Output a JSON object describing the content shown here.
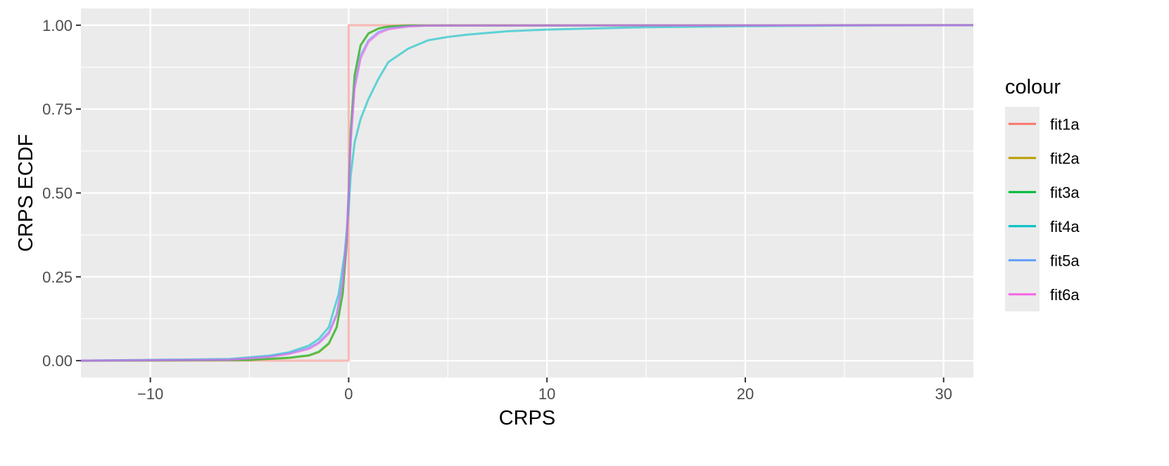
{
  "chart_data": {
    "type": "line",
    "title": "",
    "xlabel": "CRPS",
    "ylabel": "CRPS ECDF",
    "xlim": [
      -13.5,
      31.5
    ],
    "ylim": [
      -0.05,
      1.05
    ],
    "x_ticks": [
      -10,
      0,
      10,
      20,
      30
    ],
    "x_tick_labels": [
      "−10",
      "0",
      "10",
      "20",
      "30"
    ],
    "y_ticks": [
      0,
      0.25,
      0.5,
      0.75,
      1
    ],
    "y_tick_labels": [
      "0.00",
      "0.25",
      "0.50",
      "0.75",
      "1.00"
    ],
    "grid": true,
    "legend": {
      "title": "colour",
      "placement": "right"
    },
    "series": [
      {
        "name": "fit1a",
        "color": "#F8766D",
        "opacity": 0.5,
        "x": [
          -13.5,
          0,
          0,
          31.5
        ],
        "y": [
          0,
          0,
          1,
          1
        ]
      },
      {
        "name": "fit2a",
        "color": "#B79F00",
        "opacity": 0.6,
        "x": [
          -13.5,
          -5,
          -3,
          -2,
          -1.5,
          -1,
          -0.6,
          -0.3,
          -0.1,
          0,
          0.1,
          0.3,
          0.6,
          1,
          1.5,
          2,
          3,
          31.5
        ],
        "y": [
          0,
          0.002,
          0.008,
          0.015,
          0.025,
          0.05,
          0.1,
          0.2,
          0.35,
          0.5,
          0.68,
          0.85,
          0.94,
          0.975,
          0.99,
          0.996,
          0.999,
          1
        ]
      },
      {
        "name": "fit3a",
        "color": "#00BA38",
        "opacity": 0.6,
        "x": [
          -13.5,
          -5,
          -3,
          -2,
          -1.5,
          -1,
          -0.6,
          -0.3,
          -0.1,
          0,
          0.1,
          0.3,
          0.6,
          1,
          1.5,
          2,
          3,
          31.5
        ],
        "y": [
          0,
          0.002,
          0.009,
          0.016,
          0.027,
          0.052,
          0.1,
          0.2,
          0.35,
          0.5,
          0.68,
          0.85,
          0.94,
          0.976,
          0.99,
          0.996,
          0.999,
          1
        ]
      },
      {
        "name": "fit4a",
        "color": "#00BFC4",
        "opacity": 0.6,
        "x": [
          -13.5,
          -6,
          -4,
          -3,
          -2,
          -1.5,
          -1,
          -0.5,
          -0.2,
          0,
          0.1,
          0.3,
          0.6,
          1,
          1.5,
          2,
          3,
          4,
          5,
          6,
          8,
          10,
          15,
          20,
          25,
          31.5
        ],
        "y": [
          0,
          0.005,
          0.015,
          0.025,
          0.045,
          0.065,
          0.1,
          0.2,
          0.32,
          0.45,
          0.55,
          0.65,
          0.72,
          0.78,
          0.84,
          0.89,
          0.93,
          0.955,
          0.965,
          0.972,
          0.982,
          0.987,
          0.994,
          0.997,
          0.999,
          1
        ]
      },
      {
        "name": "fit5a",
        "color": "#619CFF",
        "opacity": 0.6,
        "x": [
          -13.5,
          -6,
          -4,
          -3,
          -2,
          -1.5,
          -1,
          -0.6,
          -0.3,
          -0.1,
          0,
          0.1,
          0.3,
          0.6,
          1,
          1.5,
          2,
          3,
          4,
          31.5
        ],
        "y": [
          0,
          0.003,
          0.012,
          0.022,
          0.038,
          0.055,
          0.085,
          0.14,
          0.24,
          0.37,
          0.5,
          0.66,
          0.82,
          0.91,
          0.955,
          0.98,
          0.99,
          0.997,
          0.999,
          1
        ]
      },
      {
        "name": "fit6a",
        "color": "#F564E3",
        "opacity": 0.6,
        "x": [
          -13.5,
          -6,
          -4,
          -3,
          -2,
          -1.5,
          -1,
          -0.6,
          -0.3,
          -0.1,
          0,
          0.1,
          0.3,
          0.6,
          1,
          1.5,
          2,
          3,
          4,
          31.5
        ],
        "y": [
          0,
          0.003,
          0.011,
          0.02,
          0.035,
          0.052,
          0.08,
          0.135,
          0.23,
          0.36,
          0.5,
          0.65,
          0.81,
          0.9,
          0.95,
          0.975,
          0.988,
          0.996,
          0.999,
          1
        ]
      }
    ]
  }
}
